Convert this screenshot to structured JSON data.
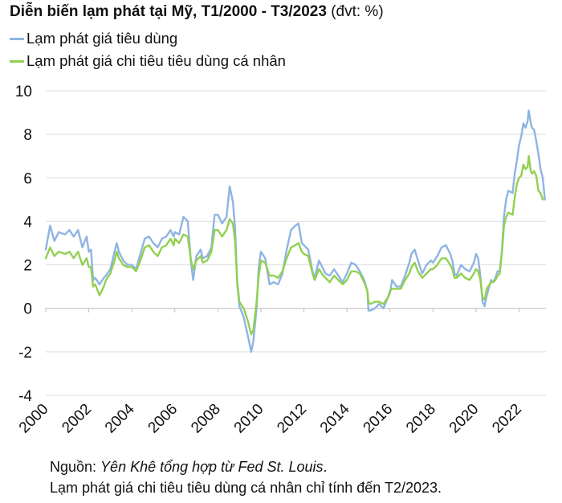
{
  "header": {
    "title_bold": "Diễn biến lạm phát tại Mỹ, T1/2000 - T3/2023",
    "title_unit": "(đvt: %)"
  },
  "legend": [
    {
      "label": "Lạm phát giá tiêu dùng",
      "color": "#8fb4e3"
    },
    {
      "label": "Lạm phát giá chi tiêu tiêu dùng cá nhân",
      "color": "#92d050"
    }
  ],
  "footer": {
    "source_prefix": "Nguồn: ",
    "source_text": "Yên Khê tổng hợp từ Fed St. Louis",
    "source_suffix": ".",
    "note": "Lạm phát giá chi tiêu tiêu dùng cá nhân chỉ tính đến T2/2023."
  },
  "chart_data": {
    "type": "line",
    "title": "Diễn biến lạm phát tại Mỹ, T1/2000 - T3/2023",
    "xlabel": "",
    "ylabel": "",
    "xlim": [
      2000,
      2023.25
    ],
    "ylim": [
      -4,
      10
    ],
    "yticks": [
      -4,
      -2,
      0,
      2,
      4,
      6,
      8,
      10
    ],
    "ytick_labels": [
      "-4",
      "-2",
      "0",
      "2",
      "4",
      "6",
      "8",
      "10"
    ],
    "xticks": [
      2000,
      2002,
      2004,
      2006,
      2008,
      2010,
      2012,
      2014,
      2016,
      2018,
      2020,
      2022
    ],
    "xtick_labels": [
      "2000",
      "2002",
      "2004",
      "2006",
      "2008",
      "2010",
      "2012",
      "2014",
      "2016",
      "2018",
      "2020",
      "2022"
    ],
    "grid": "horizontal",
    "legend_position": "top-left",
    "series": [
      {
        "name": "Lạm phát giá tiêu dùng",
        "color": "#8fb4e3",
        "points": [
          [
            2000.0,
            2.7
          ],
          [
            2000.2,
            3.8
          ],
          [
            2000.4,
            3.1
          ],
          [
            2000.6,
            3.5
          ],
          [
            2000.9,
            3.4
          ],
          [
            2001.1,
            3.6
          ],
          [
            2001.3,
            3.3
          ],
          [
            2001.5,
            3.6
          ],
          [
            2001.7,
            2.8
          ],
          [
            2001.9,
            3.3
          ],
          [
            2002.0,
            2.6
          ],
          [
            2002.1,
            2.7
          ],
          [
            2002.2,
            1.3
          ],
          [
            2002.3,
            1.4
          ],
          [
            2002.5,
            1.1
          ],
          [
            2002.7,
            1.4
          ],
          [
            2002.8,
            1.5
          ],
          [
            2003.0,
            1.8
          ],
          [
            2003.2,
            2.6
          ],
          [
            2003.3,
            3.0
          ],
          [
            2003.4,
            2.6
          ],
          [
            2003.6,
            2.2
          ],
          [
            2003.8,
            2.0
          ],
          [
            2004.0,
            2.0
          ],
          [
            2004.2,
            1.8
          ],
          [
            2004.4,
            2.5
          ],
          [
            2004.6,
            3.2
          ],
          [
            2004.8,
            3.3
          ],
          [
            2005.0,
            3.0
          ],
          [
            2005.2,
            2.8
          ],
          [
            2005.4,
            3.2
          ],
          [
            2005.6,
            3.3
          ],
          [
            2005.8,
            3.6
          ],
          [
            2005.95,
            3.3
          ],
          [
            2006.0,
            3.5
          ],
          [
            2006.2,
            3.4
          ],
          [
            2006.4,
            4.2
          ],
          [
            2006.6,
            4.0
          ],
          [
            2006.75,
            2.1
          ],
          [
            2006.85,
            1.3
          ],
          [
            2007.0,
            2.4
          ],
          [
            2007.2,
            2.7
          ],
          [
            2007.3,
            2.3
          ],
          [
            2007.5,
            2.4
          ],
          [
            2007.7,
            2.8
          ],
          [
            2007.85,
            4.3
          ],
          [
            2008.0,
            4.3
          ],
          [
            2008.2,
            3.9
          ],
          [
            2008.4,
            4.2
          ],
          [
            2008.55,
            5.6
          ],
          [
            2008.7,
            4.9
          ],
          [
            2008.8,
            3.7
          ],
          [
            2008.9,
            1.1
          ],
          [
            2009.0,
            0.1
          ],
          [
            2009.2,
            -0.4
          ],
          [
            2009.4,
            -1.3
          ],
          [
            2009.55,
            -2.0
          ],
          [
            2009.65,
            -1.5
          ],
          [
            2009.8,
            0.0
          ],
          [
            2009.9,
            1.9
          ],
          [
            2010.0,
            2.6
          ],
          [
            2010.2,
            2.3
          ],
          [
            2010.4,
            1.1
          ],
          [
            2010.6,
            1.2
          ],
          [
            2010.8,
            1.1
          ],
          [
            2011.0,
            1.6
          ],
          [
            2011.2,
            2.7
          ],
          [
            2011.4,
            3.6
          ],
          [
            2011.6,
            3.8
          ],
          [
            2011.75,
            3.9
          ],
          [
            2011.9,
            3.0
          ],
          [
            2012.0,
            2.9
          ],
          [
            2012.2,
            2.7
          ],
          [
            2012.4,
            1.7
          ],
          [
            2012.5,
            1.4
          ],
          [
            2012.7,
            2.2
          ],
          [
            2012.9,
            1.8
          ],
          [
            2013.0,
            1.6
          ],
          [
            2013.2,
            1.5
          ],
          [
            2013.4,
            1.8
          ],
          [
            2013.6,
            1.5
          ],
          [
            2013.8,
            1.2
          ],
          [
            2014.0,
            1.6
          ],
          [
            2014.2,
            2.1
          ],
          [
            2014.4,
            2.0
          ],
          [
            2014.6,
            1.7
          ],
          [
            2014.8,
            1.3
          ],
          [
            2014.95,
            0.8
          ],
          [
            2015.0,
            -0.1
          ],
          [
            2015.1,
            -0.1
          ],
          [
            2015.3,
            0.0
          ],
          [
            2015.5,
            0.2
          ],
          [
            2015.7,
            0.0
          ],
          [
            2015.9,
            0.5
          ],
          [
            2016.0,
            0.7
          ],
          [
            2016.1,
            1.3
          ],
          [
            2016.3,
            1.0
          ],
          [
            2016.5,
            1.0
          ],
          [
            2016.7,
            1.5
          ],
          [
            2016.9,
            2.1
          ],
          [
            2017.0,
            2.5
          ],
          [
            2017.15,
            2.7
          ],
          [
            2017.3,
            2.2
          ],
          [
            2017.5,
            1.6
          ],
          [
            2017.7,
            2.0
          ],
          [
            2017.9,
            2.2
          ],
          [
            2018.0,
            2.1
          ],
          [
            2018.2,
            2.4
          ],
          [
            2018.4,
            2.8
          ],
          [
            2018.6,
            2.9
          ],
          [
            2018.8,
            2.5
          ],
          [
            2018.9,
            2.2
          ],
          [
            2019.0,
            1.6
          ],
          [
            2019.1,
            1.5
          ],
          [
            2019.3,
            2.0
          ],
          [
            2019.5,
            1.8
          ],
          [
            2019.7,
            1.7
          ],
          [
            2019.9,
            2.1
          ],
          [
            2020.0,
            2.5
          ],
          [
            2020.1,
            2.3
          ],
          [
            2020.2,
            1.5
          ],
          [
            2020.3,
            0.3
          ],
          [
            2020.4,
            0.1
          ],
          [
            2020.5,
            0.6
          ],
          [
            2020.7,
            1.3
          ],
          [
            2020.8,
            1.2
          ],
          [
            2020.9,
            1.4
          ],
          [
            2021.0,
            1.7
          ],
          [
            2021.1,
            1.7
          ],
          [
            2021.2,
            2.6
          ],
          [
            2021.3,
            4.2
          ],
          [
            2021.4,
            5.0
          ],
          [
            2021.5,
            5.4
          ],
          [
            2021.7,
            5.3
          ],
          [
            2021.8,
            6.2
          ],
          [
            2021.9,
            6.8
          ],
          [
            2022.0,
            7.5
          ],
          [
            2022.1,
            7.9
          ],
          [
            2022.2,
            8.5
          ],
          [
            2022.3,
            8.3
          ],
          [
            2022.4,
            8.6
          ],
          [
            2022.45,
            9.1
          ],
          [
            2022.55,
            8.5
          ],
          [
            2022.6,
            8.3
          ],
          [
            2022.7,
            8.2
          ],
          [
            2022.8,
            7.7
          ],
          [
            2022.9,
            7.1
          ],
          [
            2023.0,
            6.4
          ],
          [
            2023.1,
            6.0
          ],
          [
            2023.2,
            5.0
          ]
        ]
      },
      {
        "name": "Lạm phát giá chi tiêu tiêu dùng cá nhân",
        "color": "#92d050",
        "points": [
          [
            2000.0,
            2.3
          ],
          [
            2000.2,
            2.8
          ],
          [
            2000.4,
            2.4
          ],
          [
            2000.6,
            2.6
          ],
          [
            2000.9,
            2.5
          ],
          [
            2001.1,
            2.6
          ],
          [
            2001.3,
            2.3
          ],
          [
            2001.5,
            2.6
          ],
          [
            2001.7,
            2.0
          ],
          [
            2001.9,
            2.3
          ],
          [
            2002.0,
            1.9
          ],
          [
            2002.1,
            1.9
          ],
          [
            2002.2,
            1.0
          ],
          [
            2002.3,
            1.1
          ],
          [
            2002.5,
            0.6
          ],
          [
            2002.7,
            1.0
          ],
          [
            2002.8,
            1.3
          ],
          [
            2003.0,
            1.6
          ],
          [
            2003.2,
            2.2
          ],
          [
            2003.3,
            2.6
          ],
          [
            2003.4,
            2.3
          ],
          [
            2003.6,
            2.0
          ],
          [
            2003.8,
            1.9
          ],
          [
            2004.0,
            1.9
          ],
          [
            2004.2,
            1.7
          ],
          [
            2004.4,
            2.2
          ],
          [
            2004.6,
            2.8
          ],
          [
            2004.8,
            2.9
          ],
          [
            2005.0,
            2.6
          ],
          [
            2005.2,
            2.4
          ],
          [
            2005.4,
            2.8
          ],
          [
            2005.6,
            2.9
          ],
          [
            2005.8,
            3.2
          ],
          [
            2005.95,
            2.9
          ],
          [
            2006.0,
            3.2
          ],
          [
            2006.2,
            3.0
          ],
          [
            2006.4,
            3.4
          ],
          [
            2006.6,
            3.3
          ],
          [
            2006.75,
            2.2
          ],
          [
            2006.85,
            1.8
          ],
          [
            2007.0,
            2.2
          ],
          [
            2007.2,
            2.4
          ],
          [
            2007.3,
            2.1
          ],
          [
            2007.5,
            2.2
          ],
          [
            2007.7,
            2.6
          ],
          [
            2007.85,
            3.6
          ],
          [
            2008.0,
            3.6
          ],
          [
            2008.2,
            3.3
          ],
          [
            2008.4,
            3.6
          ],
          [
            2008.55,
            4.1
          ],
          [
            2008.7,
            3.9
          ],
          [
            2008.8,
            3.1
          ],
          [
            2008.9,
            1.2
          ],
          [
            2009.0,
            0.3
          ],
          [
            2009.2,
            0.0
          ],
          [
            2009.4,
            -0.6
          ],
          [
            2009.55,
            -1.2
          ],
          [
            2009.65,
            -1.0
          ],
          [
            2009.8,
            0.3
          ],
          [
            2009.9,
            1.5
          ],
          [
            2010.0,
            2.2
          ],
          [
            2010.2,
            2.1
          ],
          [
            2010.4,
            1.5
          ],
          [
            2010.6,
            1.5
          ],
          [
            2010.8,
            1.4
          ],
          [
            2011.0,
            1.7
          ],
          [
            2011.2,
            2.3
          ],
          [
            2011.4,
            2.8
          ],
          [
            2011.6,
            2.9
          ],
          [
            2011.75,
            3.0
          ],
          [
            2011.9,
            2.6
          ],
          [
            2012.0,
            2.5
          ],
          [
            2012.2,
            2.4
          ],
          [
            2012.4,
            1.6
          ],
          [
            2012.5,
            1.3
          ],
          [
            2012.7,
            1.8
          ],
          [
            2012.9,
            1.5
          ],
          [
            2013.0,
            1.4
          ],
          [
            2013.2,
            1.2
          ],
          [
            2013.4,
            1.5
          ],
          [
            2013.6,
            1.3
          ],
          [
            2013.8,
            1.1
          ],
          [
            2014.0,
            1.3
          ],
          [
            2014.2,
            1.7
          ],
          [
            2014.4,
            1.7
          ],
          [
            2014.6,
            1.6
          ],
          [
            2014.8,
            1.2
          ],
          [
            2014.95,
            0.8
          ],
          [
            2015.0,
            0.3
          ],
          [
            2015.1,
            0.2
          ],
          [
            2015.3,
            0.3
          ],
          [
            2015.5,
            0.3
          ],
          [
            2015.7,
            0.2
          ],
          [
            2015.9,
            0.5
          ],
          [
            2016.0,
            0.8
          ],
          [
            2016.1,
            0.9
          ],
          [
            2016.3,
            0.9
          ],
          [
            2016.5,
            0.9
          ],
          [
            2016.7,
            1.3
          ],
          [
            2016.9,
            1.6
          ],
          [
            2017.0,
            1.9
          ],
          [
            2017.15,
            2.1
          ],
          [
            2017.3,
            1.7
          ],
          [
            2017.5,
            1.4
          ],
          [
            2017.7,
            1.6
          ],
          [
            2017.9,
            1.8
          ],
          [
            2018.0,
            1.8
          ],
          [
            2018.2,
            2.0
          ],
          [
            2018.4,
            2.3
          ],
          [
            2018.6,
            2.3
          ],
          [
            2018.8,
            2.0
          ],
          [
            2018.9,
            1.8
          ],
          [
            2019.0,
            1.4
          ],
          [
            2019.1,
            1.4
          ],
          [
            2019.3,
            1.6
          ],
          [
            2019.5,
            1.4
          ],
          [
            2019.7,
            1.3
          ],
          [
            2019.9,
            1.6
          ],
          [
            2020.0,
            1.8
          ],
          [
            2020.1,
            1.7
          ],
          [
            2020.2,
            1.3
          ],
          [
            2020.3,
            0.5
          ],
          [
            2020.4,
            0.4
          ],
          [
            2020.5,
            0.9
          ],
          [
            2020.7,
            1.2
          ],
          [
            2020.8,
            1.2
          ],
          [
            2020.9,
            1.3
          ],
          [
            2021.0,
            1.5
          ],
          [
            2021.1,
            1.6
          ],
          [
            2021.2,
            2.5
          ],
          [
            2021.3,
            3.8
          ],
          [
            2021.4,
            4.2
          ],
          [
            2021.5,
            4.4
          ],
          [
            2021.7,
            4.3
          ],
          [
            2021.8,
            5.1
          ],
          [
            2021.9,
            5.7
          ],
          [
            2022.0,
            6.0
          ],
          [
            2022.1,
            6.1
          ],
          [
            2022.2,
            6.6
          ],
          [
            2022.3,
            6.4
          ],
          [
            2022.4,
            6.5
          ],
          [
            2022.45,
            7.0
          ],
          [
            2022.55,
            6.3
          ],
          [
            2022.6,
            6.2
          ],
          [
            2022.7,
            6.3
          ],
          [
            2022.8,
            6.1
          ],
          [
            2022.9,
            5.4
          ],
          [
            2023.0,
            5.3
          ],
          [
            2023.1,
            5.0
          ]
        ]
      }
    ]
  }
}
